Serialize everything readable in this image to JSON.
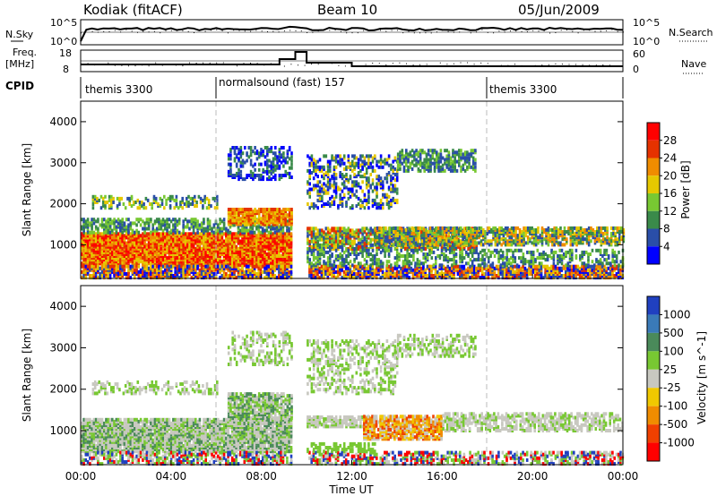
{
  "header": {
    "station": "Kodiak (fitACF)",
    "beam": "Beam 10",
    "date": "05/Jun/2009"
  },
  "noise_panel": {
    "left_label": "N.Sky",
    "right_label": "N.Search",
    "left_ticks": [
      "10^5",
      "10^0"
    ],
    "right_ticks": [
      "10^5",
      "10^0"
    ]
  },
  "freq_panel": {
    "left_label_line1": "Freq.",
    "left_label_line2": "[MHz]",
    "right_label": "Nave",
    "left_ticks": [
      "18",
      "8"
    ],
    "right_ticks": [
      "60",
      "0"
    ]
  },
  "cpid": {
    "label": "CPID",
    "segments": [
      {
        "start_hour": 0,
        "end_hour": 6,
        "text": "themis 3300"
      },
      {
        "start_hour": 6,
        "end_hour": 18,
        "text": "normalsound (fast) 157"
      },
      {
        "start_hour": 18,
        "end_hour": 24,
        "text": "themis 3300"
      }
    ]
  },
  "chart_data": [
    {
      "type": "heatmap",
      "name": "power",
      "ylabel": "Slant Range [km]",
      "y_ticks": [
        "1000",
        "2000",
        "3000",
        "4000"
      ],
      "ylim": [
        180,
        4500
      ],
      "colorbar_label": "Power [dB]",
      "colorbar_ticks": [
        "4",
        "8",
        "12",
        "16",
        "20",
        "24",
        "28"
      ],
      "colorbar_colors": [
        "#0000ff",
        "#2a4ea8",
        "#3a8a4a",
        "#78c832",
        "#e6c800",
        "#f08c00",
        "#e63200",
        "#ff0000"
      ]
    },
    {
      "type": "heatmap",
      "name": "velocity",
      "ylabel": "Slant Range [km]",
      "y_ticks": [
        "1000",
        "2000",
        "3000",
        "4000"
      ],
      "ylim": [
        180,
        4500
      ],
      "colorbar_label": "Velocity [m s^-1]",
      "colorbar_ticks": [
        "1000",
        "500",
        "100",
        "25",
        "-25",
        "-100",
        "-500",
        "-1000"
      ],
      "colorbar_colors": [
        "#2040c0",
        "#3a7ab8",
        "#4a8a5a",
        "#78c832",
        "#c8c8c0",
        "#f0c800",
        "#f08c00",
        "#f04000",
        "#ff0000"
      ]
    }
  ],
  "time_axis": {
    "label": "Time UT",
    "ticks": [
      "00:00",
      "04:00",
      "08:00",
      "12:00",
      "16:00",
      "20:00",
      "00:00"
    ]
  }
}
